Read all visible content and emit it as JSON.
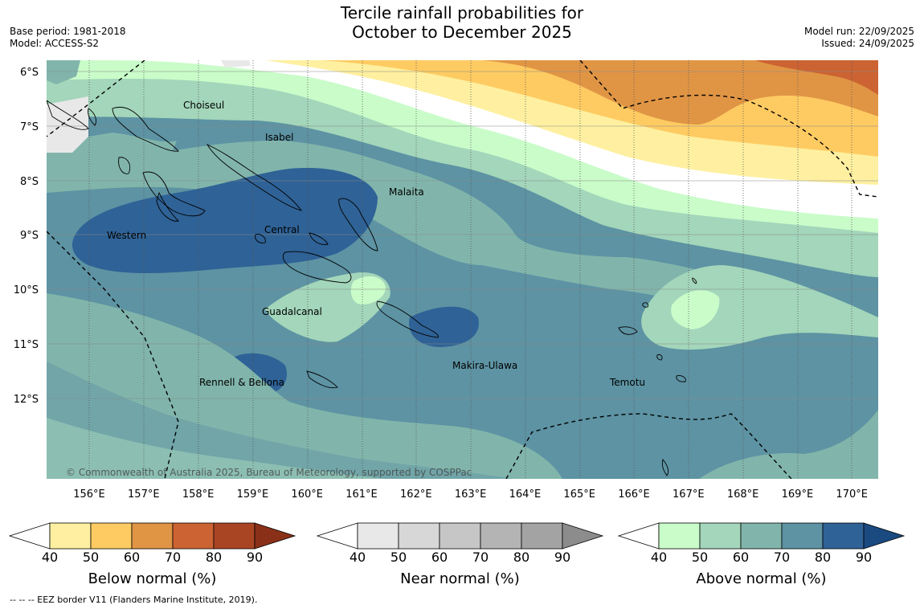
{
  "title_line1": "Tercile rainfall probabilities for",
  "title_line2": "October to December 2025",
  "base_period": "Base period: 1981-2018",
  "model": "Model: ACCESS-S2",
  "model_run": "Model run: 22/09/2025",
  "issued": "Issued: 24/09/2025",
  "copyright": "© Commonwealth of Australia 2025, Bureau of Meteorology, supported by COSPPac",
  "lat_labels": [
    "6°S",
    "7°S",
    "8°S",
    "9°S",
    "10°S",
    "11°S",
    "12°S"
  ],
  "lon_labels": [
    "156°E",
    "157°E",
    "158°E",
    "159°E",
    "160°E",
    "161°E",
    "162°E",
    "163°E",
    "164°E",
    "165°E",
    "166°E",
    "167°E",
    "168°E",
    "169°E",
    "170°E"
  ],
  "province_labels": {
    "choiseul": "Choiseul",
    "isabel": "Isabel",
    "malaita": "Malaita",
    "western": "Western",
    "central": "Central",
    "guadalcanal": "Guadalcanal",
    "makira": "Makira-Ulawa",
    "rennell": "Rennell & Bellona",
    "temotu": "Temotu"
  },
  "colorbars": [
    {
      "title": "Below normal (%)",
      "ticks": [
        "40",
        "50",
        "60",
        "70",
        "80",
        "90"
      ],
      "colors": [
        "#fef0a0",
        "#fecb62",
        "#e09545",
        "#cc6332",
        "#aa4524",
        "#8a3018"
      ]
    },
    {
      "title": "Near normal (%)",
      "ticks": [
        "40",
        "50",
        "60",
        "70",
        "80",
        "90"
      ],
      "colors": [
        "#e8e8e8",
        "#d7d7d7",
        "#c6c6c6",
        "#b4b4b4",
        "#a3a3a3",
        "#8c8c8c"
      ]
    },
    {
      "title": "Above normal (%)",
      "ticks": [
        "40",
        "50",
        "60",
        "70",
        "80",
        "90"
      ],
      "colors": [
        "#c9fcc9",
        "#a3d6ba",
        "#81b5ab",
        "#5d93a3",
        "#2f6296",
        "#1a4a80"
      ]
    }
  ],
  "footnote": "--  --  -- EEZ border V11 (Flanders Marine Institute, 2019)."
}
